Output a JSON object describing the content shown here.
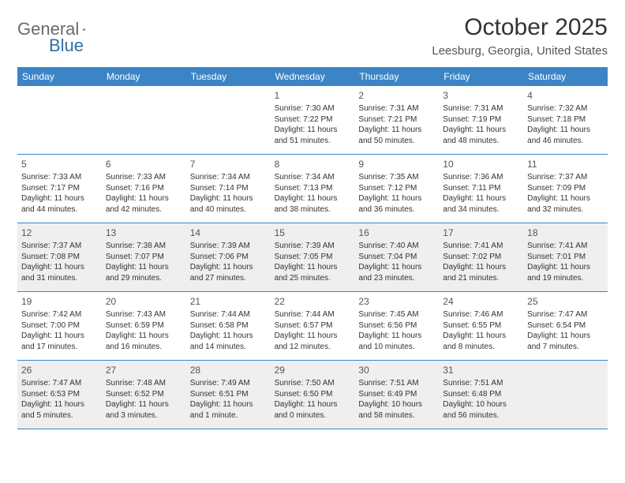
{
  "logo": {
    "general": "General",
    "blue": "Blue"
  },
  "title": "October 2025",
  "location": "Leesburg, Georgia, United States",
  "colors": {
    "header_bg": "#3b85c6",
    "header_text": "#ffffff",
    "shaded_bg": "#efefef",
    "border": "#3b85c6",
    "text": "#333333"
  },
  "dow": [
    "Sunday",
    "Monday",
    "Tuesday",
    "Wednesday",
    "Thursday",
    "Friday",
    "Saturday"
  ],
  "weeks": [
    [
      {
        "n": "",
        "sr": "",
        "ss": "",
        "dl": ""
      },
      {
        "n": "",
        "sr": "",
        "ss": "",
        "dl": ""
      },
      {
        "n": "",
        "sr": "",
        "ss": "",
        "dl": ""
      },
      {
        "n": "1",
        "sr": "Sunrise: 7:30 AM",
        "ss": "Sunset: 7:22 PM",
        "dl": "Daylight: 11 hours and 51 minutes."
      },
      {
        "n": "2",
        "sr": "Sunrise: 7:31 AM",
        "ss": "Sunset: 7:21 PM",
        "dl": "Daylight: 11 hours and 50 minutes."
      },
      {
        "n": "3",
        "sr": "Sunrise: 7:31 AM",
        "ss": "Sunset: 7:19 PM",
        "dl": "Daylight: 11 hours and 48 minutes."
      },
      {
        "n": "4",
        "sr": "Sunrise: 7:32 AM",
        "ss": "Sunset: 7:18 PM",
        "dl": "Daylight: 11 hours and 46 minutes."
      }
    ],
    [
      {
        "n": "5",
        "sr": "Sunrise: 7:33 AM",
        "ss": "Sunset: 7:17 PM",
        "dl": "Daylight: 11 hours and 44 minutes."
      },
      {
        "n": "6",
        "sr": "Sunrise: 7:33 AM",
        "ss": "Sunset: 7:16 PM",
        "dl": "Daylight: 11 hours and 42 minutes."
      },
      {
        "n": "7",
        "sr": "Sunrise: 7:34 AM",
        "ss": "Sunset: 7:14 PM",
        "dl": "Daylight: 11 hours and 40 minutes."
      },
      {
        "n": "8",
        "sr": "Sunrise: 7:34 AM",
        "ss": "Sunset: 7:13 PM",
        "dl": "Daylight: 11 hours and 38 minutes."
      },
      {
        "n": "9",
        "sr": "Sunrise: 7:35 AM",
        "ss": "Sunset: 7:12 PM",
        "dl": "Daylight: 11 hours and 36 minutes."
      },
      {
        "n": "10",
        "sr": "Sunrise: 7:36 AM",
        "ss": "Sunset: 7:11 PM",
        "dl": "Daylight: 11 hours and 34 minutes."
      },
      {
        "n": "11",
        "sr": "Sunrise: 7:37 AM",
        "ss": "Sunset: 7:09 PM",
        "dl": "Daylight: 11 hours and 32 minutes."
      }
    ],
    [
      {
        "n": "12",
        "sr": "Sunrise: 7:37 AM",
        "ss": "Sunset: 7:08 PM",
        "dl": "Daylight: 11 hours and 31 minutes."
      },
      {
        "n": "13",
        "sr": "Sunrise: 7:38 AM",
        "ss": "Sunset: 7:07 PM",
        "dl": "Daylight: 11 hours and 29 minutes."
      },
      {
        "n": "14",
        "sr": "Sunrise: 7:39 AM",
        "ss": "Sunset: 7:06 PM",
        "dl": "Daylight: 11 hours and 27 minutes."
      },
      {
        "n": "15",
        "sr": "Sunrise: 7:39 AM",
        "ss": "Sunset: 7:05 PM",
        "dl": "Daylight: 11 hours and 25 minutes."
      },
      {
        "n": "16",
        "sr": "Sunrise: 7:40 AM",
        "ss": "Sunset: 7:04 PM",
        "dl": "Daylight: 11 hours and 23 minutes."
      },
      {
        "n": "17",
        "sr": "Sunrise: 7:41 AM",
        "ss": "Sunset: 7:02 PM",
        "dl": "Daylight: 11 hours and 21 minutes."
      },
      {
        "n": "18",
        "sr": "Sunrise: 7:41 AM",
        "ss": "Sunset: 7:01 PM",
        "dl": "Daylight: 11 hours and 19 minutes."
      }
    ],
    [
      {
        "n": "19",
        "sr": "Sunrise: 7:42 AM",
        "ss": "Sunset: 7:00 PM",
        "dl": "Daylight: 11 hours and 17 minutes."
      },
      {
        "n": "20",
        "sr": "Sunrise: 7:43 AM",
        "ss": "Sunset: 6:59 PM",
        "dl": "Daylight: 11 hours and 16 minutes."
      },
      {
        "n": "21",
        "sr": "Sunrise: 7:44 AM",
        "ss": "Sunset: 6:58 PM",
        "dl": "Daylight: 11 hours and 14 minutes."
      },
      {
        "n": "22",
        "sr": "Sunrise: 7:44 AM",
        "ss": "Sunset: 6:57 PM",
        "dl": "Daylight: 11 hours and 12 minutes."
      },
      {
        "n": "23",
        "sr": "Sunrise: 7:45 AM",
        "ss": "Sunset: 6:56 PM",
        "dl": "Daylight: 11 hours and 10 minutes."
      },
      {
        "n": "24",
        "sr": "Sunrise: 7:46 AM",
        "ss": "Sunset: 6:55 PM",
        "dl": "Daylight: 11 hours and 8 minutes."
      },
      {
        "n": "25",
        "sr": "Sunrise: 7:47 AM",
        "ss": "Sunset: 6:54 PM",
        "dl": "Daylight: 11 hours and 7 minutes."
      }
    ],
    [
      {
        "n": "26",
        "sr": "Sunrise: 7:47 AM",
        "ss": "Sunset: 6:53 PM",
        "dl": "Daylight: 11 hours and 5 minutes."
      },
      {
        "n": "27",
        "sr": "Sunrise: 7:48 AM",
        "ss": "Sunset: 6:52 PM",
        "dl": "Daylight: 11 hours and 3 minutes."
      },
      {
        "n": "28",
        "sr": "Sunrise: 7:49 AM",
        "ss": "Sunset: 6:51 PM",
        "dl": "Daylight: 11 hours and 1 minute."
      },
      {
        "n": "29",
        "sr": "Sunrise: 7:50 AM",
        "ss": "Sunset: 6:50 PM",
        "dl": "Daylight: 11 hours and 0 minutes."
      },
      {
        "n": "30",
        "sr": "Sunrise: 7:51 AM",
        "ss": "Sunset: 6:49 PM",
        "dl": "Daylight: 10 hours and 58 minutes."
      },
      {
        "n": "31",
        "sr": "Sunrise: 7:51 AM",
        "ss": "Sunset: 6:48 PM",
        "dl": "Daylight: 10 hours and 56 minutes."
      },
      {
        "n": "",
        "sr": "",
        "ss": "",
        "dl": ""
      }
    ]
  ],
  "shaded_weeks": [
    2,
    4
  ]
}
